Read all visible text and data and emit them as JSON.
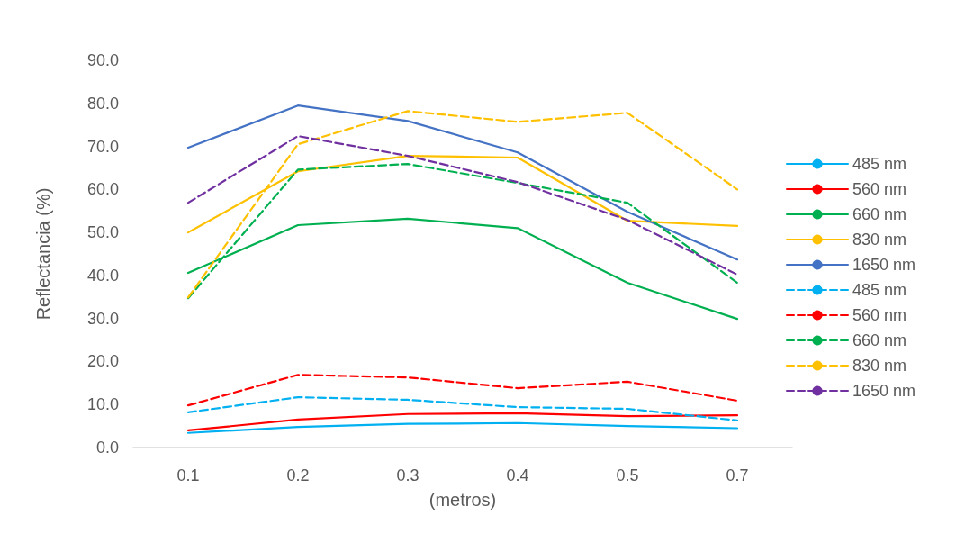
{
  "chart_data": {
    "type": "line",
    "xlabel": "(metros)",
    "ylabel": "Reflectancia (%)",
    "categories": [
      "0.1",
      "0.2",
      "0.3",
      "0.4",
      "0.5",
      "0.7"
    ],
    "ylim": [
      0,
      90
    ],
    "yticks": [
      {
        "value": 0,
        "label": "0.0"
      },
      {
        "value": 10,
        "label": "10.0"
      },
      {
        "value": 20,
        "label": "20.0"
      },
      {
        "value": 30,
        "label": "30.0"
      },
      {
        "value": 40,
        "label": "40.0"
      },
      {
        "value": 50,
        "label": "50.0"
      },
      {
        "value": 60,
        "label": "60.0"
      },
      {
        "value": 70,
        "label": "70.0"
      },
      {
        "value": 80,
        "label": "80.0"
      },
      {
        "value": 90,
        "label": "90.0"
      }
    ],
    "grid": false,
    "legend": "right",
    "marker": "none",
    "series": [
      {
        "name": "485 nm",
        "color": "#00b0f0",
        "line_style": "solid",
        "values": [
          3.4,
          4.8,
          5.5,
          5.7,
          5.0,
          4.5
        ]
      },
      {
        "name": "560 nm",
        "color": "#ff0000",
        "line_style": "solid",
        "values": [
          4.0,
          6.5,
          7.8,
          8.0,
          7.3,
          7.5
        ]
      },
      {
        "name": "660 nm",
        "color": "#00b050",
        "line_style": "solid",
        "values": [
          40.6,
          51.7,
          53.2,
          51.0,
          38.3,
          29.9
        ]
      },
      {
        "name": "830 nm",
        "color": "#ffc000",
        "line_style": "solid",
        "values": [
          50.0,
          64.2,
          67.8,
          67.4,
          52.7,
          51.5
        ]
      },
      {
        "name": "1650 nm",
        "color": "#4472c4",
        "line_style": "solid",
        "values": [
          69.7,
          79.5,
          75.9,
          68.6,
          54.8,
          43.7
        ]
      },
      {
        "name": "485 nm",
        "color": "#00b0f0",
        "line_style": "dashed",
        "values": [
          8.2,
          11.7,
          11.1,
          9.4,
          9.0,
          6.3
        ]
      },
      {
        "name": "560 nm",
        "color": "#ff0000",
        "line_style": "dashed",
        "values": [
          9.8,
          16.9,
          16.3,
          13.8,
          15.3,
          10.9
        ]
      },
      {
        "name": "660 nm",
        "color": "#00b050",
        "line_style": "dashed",
        "values": [
          34.7,
          64.6,
          65.9,
          61.5,
          56.9,
          38.3
        ]
      },
      {
        "name": "830 nm",
        "color": "#ffc000",
        "line_style": "dashed",
        "values": [
          34.9,
          70.5,
          78.2,
          75.7,
          77.8,
          60.0
        ]
      },
      {
        "name": "1650 nm",
        "color": "#7030a0",
        "line_style": "dashed",
        "values": [
          56.9,
          72.4,
          67.8,
          61.7,
          52.9,
          40.2
        ]
      }
    ]
  }
}
